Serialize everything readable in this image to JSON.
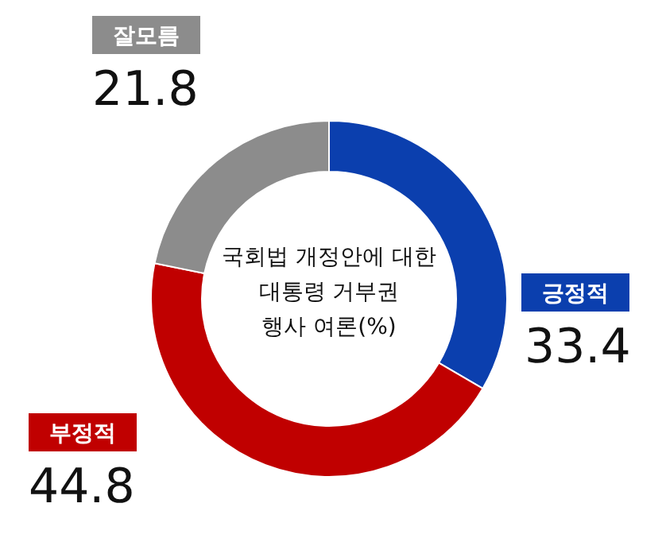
{
  "chart_data": {
    "type": "donut",
    "title": "국회법 개정안에 대한\n대통령 거부권\n행사 여론(%)",
    "categories": [
      "긍정적",
      "부정적",
      "잘모름"
    ],
    "values": [
      33.4,
      44.8,
      21.8
    ],
    "colors": [
      "#0b3fae",
      "#c00000",
      "#8c8c8c"
    ],
    "data_labels": true
  }
}
